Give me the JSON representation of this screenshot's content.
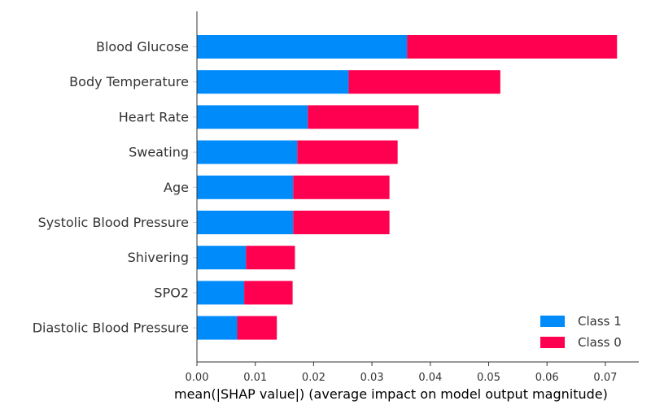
{
  "chart_data": {
    "type": "bar",
    "orientation": "horizontal",
    "stacked": true,
    "categories": [
      "Blood Glucose",
      "Body Temperature",
      "Heart Rate",
      "Sweating",
      "Age",
      "Systolic Blood Pressure",
      "Shivering",
      "SPO2",
      "Diastolic Blood Pressure"
    ],
    "series": [
      {
        "name": "Class 1",
        "color": "#008bfb",
        "values": [
          0.036,
          0.026,
          0.019,
          0.0172,
          0.0165,
          0.0165,
          0.0084,
          0.0081,
          0.0069
        ]
      },
      {
        "name": "Class 0",
        "color": "#ff0051",
        "values": [
          0.036,
          0.026,
          0.019,
          0.0172,
          0.0165,
          0.0165,
          0.0084,
          0.0083,
          0.0068
        ]
      }
    ],
    "xlabel": "mean(|SHAP value|) (average impact on model output magnitude)",
    "ylabel": "",
    "title": "",
    "xlim": [
      0.0,
      0.0758
    ],
    "xticks": [
      "0.00",
      "0.01",
      "0.02",
      "0.03",
      "0.04",
      "0.05",
      "0.06",
      "0.07"
    ],
    "grid": false,
    "legend_position": "bottom-right"
  }
}
